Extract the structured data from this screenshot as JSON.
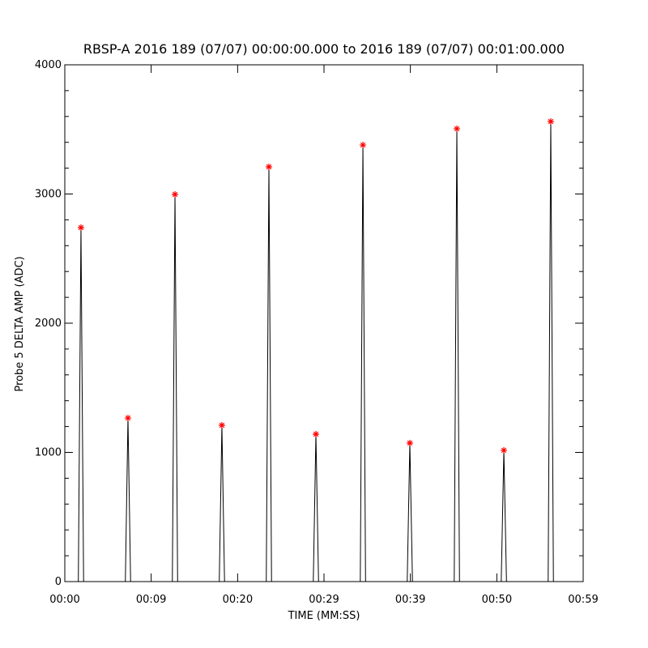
{
  "chart_data": {
    "type": "line",
    "title": "RBSP-A 2016 189 (07/07) 00:00:00.000 to 2016 189 (07/07) 00:01:00.000",
    "xlabel": "TIME (MM:SS)",
    "ylabel": "Probe 5 DELTA AMP (ADC)",
    "xlim": [
      0,
      59
    ],
    "ylim": [
      0,
      4000
    ],
    "xticks": [
      {
        "value": 0,
        "label": "00:00"
      },
      {
        "value": 9.83,
        "label": "00:09"
      },
      {
        "value": 19.67,
        "label": "00:20"
      },
      {
        "value": 29.5,
        "label": "00:29"
      },
      {
        "value": 39.33,
        "label": "00:39"
      },
      {
        "value": 49.17,
        "label": "00:50"
      },
      {
        "value": 59,
        "label": "00:59"
      }
    ],
    "yticks": [
      0,
      1000,
      2000,
      3000,
      4000
    ],
    "yminorticks": [
      200,
      400,
      600,
      800,
      1200,
      1400,
      1600,
      1800,
      2200,
      2400,
      2600,
      2800,
      3200,
      3400,
      3600,
      3800
    ],
    "line": {
      "color": "#000000",
      "x": [
        0.5,
        1.54,
        1.84,
        2.14,
        6.89,
        7.19,
        7.49,
        12.24,
        12.54,
        12.84,
        17.58,
        17.88,
        18.18,
        22.93,
        23.23,
        23.53,
        28.28,
        28.58,
        28.88,
        33.63,
        33.93,
        34.23,
        38.97,
        39.27,
        39.57,
        44.32,
        44.62,
        44.92,
        49.67,
        49.97,
        50.27,
        55.01,
        55.31,
        55.61,
        58.5
      ],
      "values": [
        0,
        0,
        2740,
        0,
        0,
        1266,
        0,
        0,
        2997,
        0,
        0,
        1210,
        0,
        0,
        3210,
        0,
        0,
        1141,
        0,
        0,
        3379,
        0,
        0,
        1072,
        0,
        0,
        3505,
        0,
        0,
        1016,
        0,
        0,
        3561,
        0,
        0
      ]
    },
    "peaks": {
      "color": "#ff0000",
      "marker": "*",
      "x": [
        1.84,
        7.19,
        12.54,
        17.88,
        23.23,
        28.58,
        33.93,
        39.27,
        44.62,
        49.97,
        55.31
      ],
      "values": [
        2740,
        1266,
        2997,
        1210,
        3210,
        1141,
        3379,
        1072,
        3505,
        1016,
        3561
      ]
    }
  }
}
